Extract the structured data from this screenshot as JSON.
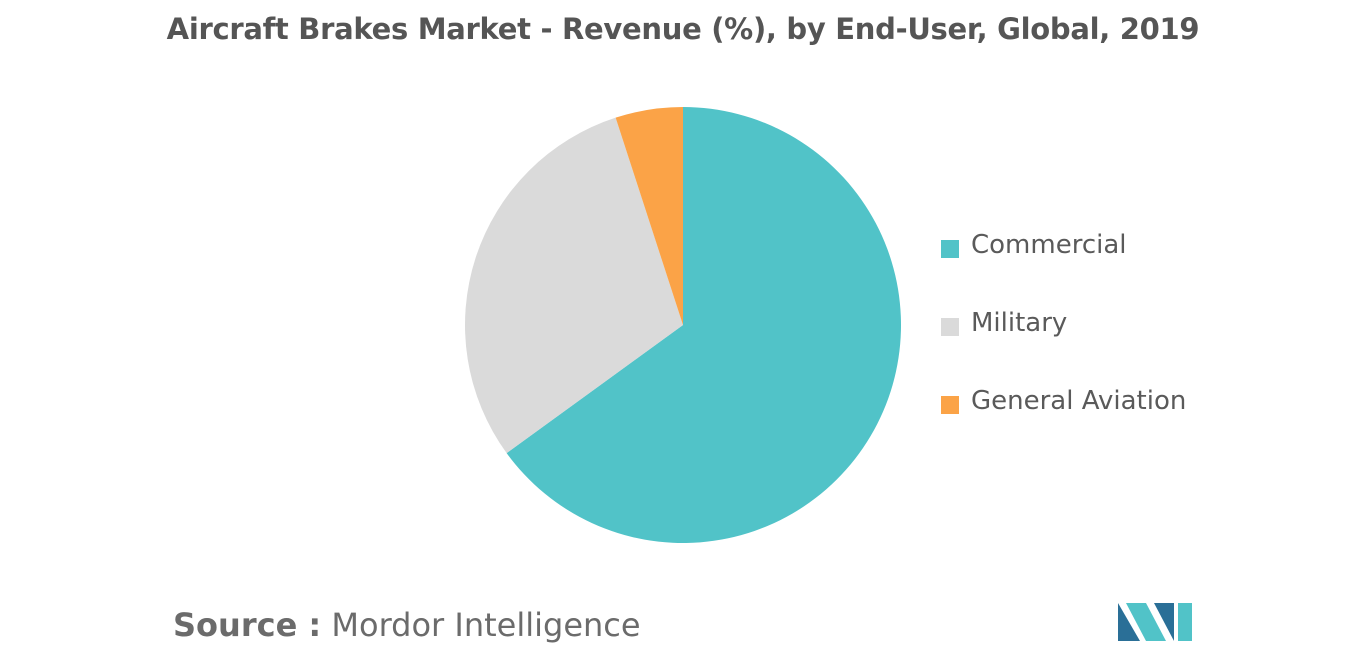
{
  "title": "Aircraft Brakes Market - Revenue (%), by End-User, Global, 2019",
  "source": {
    "label": "Source :",
    "value": "Mordor Intelligence"
  },
  "chart_data": {
    "type": "pie",
    "title": "Aircraft Brakes Market - Revenue (%), by End-User, Global, 2019",
    "legend_position": "right",
    "slices": [
      {
        "name": "Commercial",
        "value": 65,
        "color": "#51c3c8"
      },
      {
        "name": "Military",
        "value": 30,
        "color": "#dadada"
      },
      {
        "name": "General Aviation",
        "value": 5,
        "color": "#fba347"
      }
    ]
  },
  "logo": {
    "icon": "mordor-intelligence-logo-icon",
    "colors": [
      "#2a6f97",
      "#51c3c8"
    ]
  }
}
